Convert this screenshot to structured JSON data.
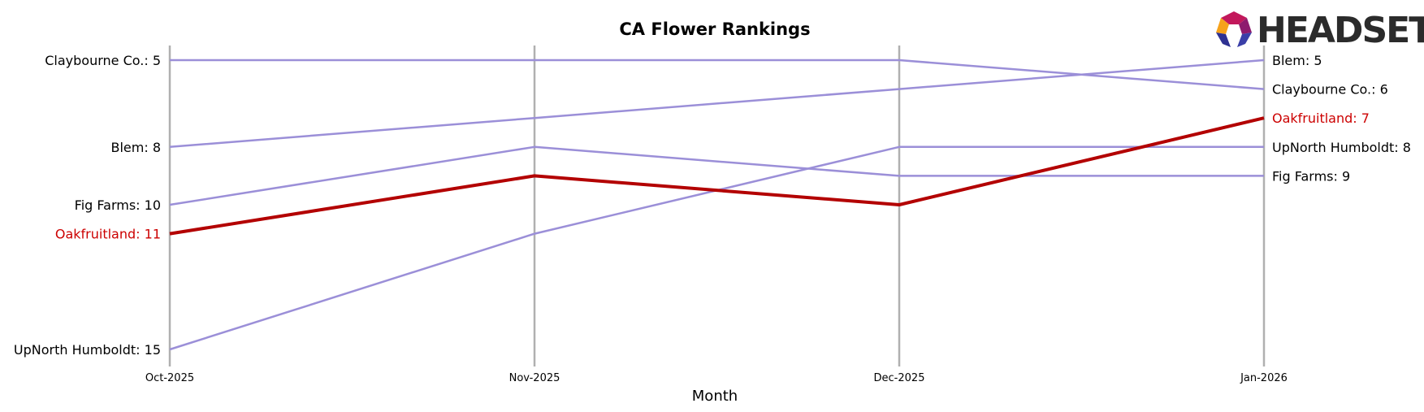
{
  "chart_data": {
    "type": "line",
    "title": "CA Flower Rankings",
    "xlabel": "Month",
    "ylabel": "",
    "x": [
      "Oct-2025",
      "Nov-2025",
      "Dec-2025",
      "Jan-2026"
    ],
    "ylim": [
      15.7,
      4.3
    ],
    "y_inverted": true,
    "grid": "vertical lines at each month",
    "series": [
      {
        "name": "Claybourne Co.",
        "values": [
          5,
          5,
          5,
          6
        ],
        "color": "#9b8fd8",
        "highlight": false
      },
      {
        "name": "Blem",
        "values": [
          8,
          7,
          6,
          5
        ],
        "color": "#9b8fd8",
        "highlight": false
      },
      {
        "name": "Fig Farms",
        "values": [
          10,
          8,
          9,
          9
        ],
        "color": "#9b8fd8",
        "highlight": false
      },
      {
        "name": "Oakfruitland",
        "values": [
          11,
          9,
          10,
          7
        ],
        "color": "#b30000",
        "highlight": true
      },
      {
        "name": "UpNorth Humboldt",
        "values": [
          15,
          11,
          8,
          8
        ],
        "color": "#9b8fd8",
        "highlight": false
      }
    ],
    "left_labels": [
      {
        "text": "Claybourne Co.: 5",
        "series": "Claybourne Co."
      },
      {
        "text": "Blem: 8",
        "series": "Blem"
      },
      {
        "text": "Fig Farms: 10",
        "series": "Fig Farms"
      },
      {
        "text": "Oakfruitland: 11",
        "series": "Oakfruitland"
      },
      {
        "text": "UpNorth Humboldt: 15",
        "series": "UpNorth Humboldt"
      }
    ],
    "right_labels": [
      {
        "text": "Blem: 5",
        "series": "Blem"
      },
      {
        "text": "Claybourne Co.: 6",
        "series": "Claybourne Co."
      },
      {
        "text": "Oakfruitland: 7",
        "series": "Oakfruitland"
      },
      {
        "text": "UpNorth Humboldt: 8",
        "series": "UpNorth Humboldt"
      },
      {
        "text": "Fig Farms: 9",
        "series": "Fig Farms"
      }
    ]
  },
  "logo": {
    "text": "HEADSET",
    "colors": [
      "#e8452c",
      "#c2185b",
      "#f6a21b",
      "#2e3192",
      "#8e1b6e"
    ]
  },
  "colors": {
    "gridline": "#b0b0b0",
    "label_default": "#000000",
    "label_highlight": "#cc0000"
  }
}
